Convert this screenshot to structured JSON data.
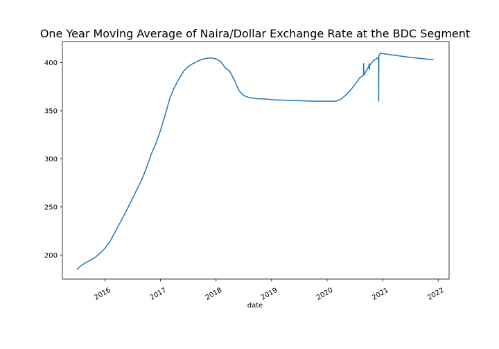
{
  "chart_data": {
    "type": "line",
    "title": "One Year Moving Average of Naira/Dollar Exchange Rate at the BDC Segment",
    "xlabel": "date",
    "ylabel": "",
    "grid": false,
    "legend": "none",
    "line_color": "#1f77b4",
    "xlim": [
      "2015-03-27",
      "2022-03-14"
    ],
    "ylim": [
      175,
      422
    ],
    "x_ticks": [
      "2016",
      "2017",
      "2018",
      "2019",
      "2020",
      "2021",
      "2022"
    ],
    "y_ticks": [
      "200",
      "250",
      "300",
      "350",
      "400"
    ],
    "x_tick_dates": [
      "2016-01-01",
      "2017-01-01",
      "2018-01-01",
      "2019-01-01",
      "2020-01-01",
      "2021-01-01",
      "2022-01-01"
    ],
    "y_tick_values": [
      200,
      250,
      300,
      350,
      400
    ],
    "series": [
      {
        "x": [
          "2015-06-30",
          "2015-08-01",
          "2015-09-01",
          "2015-10-01",
          "2015-11-01",
          "2015-12-01",
          "2016-01-01",
          "2016-02-01",
          "2016-03-01",
          "2016-04-01",
          "2016-05-01",
          "2016-06-01",
          "2016-07-01",
          "2016-08-01",
          "2016-09-01",
          "2016-10-01",
          "2016-11-01",
          "2016-12-01",
          "2017-01-01",
          "2017-02-01",
          "2017-03-01",
          "2017-04-01",
          "2017-05-01",
          "2017-06-01",
          "2017-07-01",
          "2017-08-01",
          "2017-09-01",
          "2017-10-01",
          "2017-11-01",
          "2017-12-01",
          "2018-01-01",
          "2018-02-01",
          "2018-03-01",
          "2018-04-01",
          "2018-05-01",
          "2018-06-01",
          "2018-07-01",
          "2018-08-01",
          "2018-09-01",
          "2018-10-01",
          "2018-11-01",
          "2018-12-01",
          "2019-01-01",
          "2019-04-01",
          "2019-07-01",
          "2019-10-01",
          "2020-01-01",
          "2020-02-01",
          "2020-03-01",
          "2020-04-01",
          "2020-05-01",
          "2020-06-01",
          "2020-07-01",
          "2020-08-01",
          "2020-08-28",
          "2020-08-29",
          "2020-08-30",
          "2020-09-15",
          "2020-10-01",
          "2020-10-05",
          "2020-10-06",
          "2020-10-07",
          "2020-11-01",
          "2020-12-05",
          "2020-12-06",
          "2020-12-07",
          "2020-12-08",
          "2020-12-20",
          "2021-01-01",
          "2021-04-01",
          "2021-07-01",
          "2021-10-01",
          "2021-12-01"
        ],
        "values": [
          185,
          189.5,
          192.5,
          195,
          198,
          202,
          207,
          213.5,
          222,
          231,
          240,
          249.5,
          259,
          269,
          279,
          291,
          305,
          316,
          330,
          346,
          362,
          374,
          383,
          391,
          396,
          399,
          401.5,
          403.5,
          404.5,
          405,
          404,
          401,
          395,
          391,
          382,
          371,
          366,
          364,
          363,
          362.5,
          362.5,
          362,
          361.5,
          361,
          360.5,
          360,
          360,
          360,
          360,
          362,
          366,
          371,
          377,
          384,
          387,
          399,
          387,
          391.5,
          396,
          399,
          393,
          397,
          402,
          405.5,
          360,
          405.5,
          408,
          410,
          409.5,
          407.5,
          405.5,
          404,
          403
        ]
      }
    ]
  }
}
